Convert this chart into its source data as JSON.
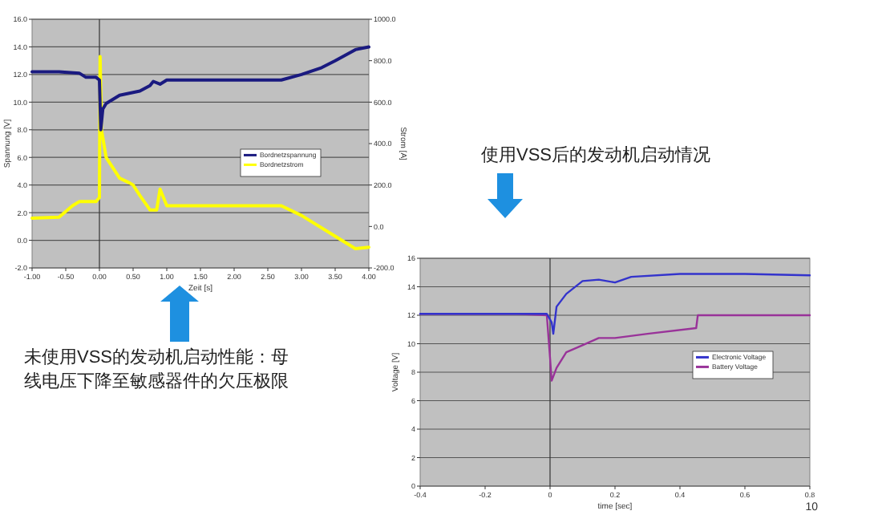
{
  "chart_data": [
    {
      "type": "line",
      "title": "未使用VSS的发动机启动性能：母线电压下降至敏感器件的欠压极限",
      "xlabel": "Zeit [s]",
      "ylabel": "Spannung [V]",
      "y2label": "Strom [A]",
      "grid": "y",
      "legend": "right",
      "line_style": "solid",
      "marker": "none",
      "xlim": [
        -1,
        4
      ],
      "xticks": [
        {
          "value": -1,
          "label": "-1.00"
        },
        {
          "value": -0.5,
          "label": "-0.50"
        },
        {
          "value": 0,
          "label": "0.00"
        },
        {
          "value": 0.5,
          "label": "0.50"
        },
        {
          "value": 1,
          "label": "1.00"
        },
        {
          "value": 1.5,
          "label": "1.50"
        },
        {
          "value": 2,
          "label": "2.00"
        },
        {
          "value": 2.5,
          "label": "2.50"
        },
        {
          "value": 3,
          "label": "3.00"
        },
        {
          "value": 3.5,
          "label": "3.50"
        },
        {
          "value": 4,
          "label": "4.00"
        }
      ],
      "ylim": [
        -2,
        16
      ],
      "yticks": [
        {
          "value": -2,
          "label": "-2.0"
        },
        {
          "value": 0,
          "label": "0.0"
        },
        {
          "value": 2,
          "label": "2.0"
        },
        {
          "value": 4,
          "label": "4.0"
        },
        {
          "value": 6,
          "label": "6.0"
        },
        {
          "value": 8,
          "label": "8.0"
        },
        {
          "value": 10,
          "label": "10.0"
        },
        {
          "value": 12,
          "label": "12.0"
        },
        {
          "value": 14,
          "label": "14.0"
        },
        {
          "value": 16,
          "label": "16.0"
        }
      ],
      "y2lim": [
        -200,
        1000
      ],
      "y2ticks": [
        {
          "value": -200,
          "label": "-200.0"
        },
        {
          "value": 0,
          "label": "0.0"
        },
        {
          "value": 200,
          "label": "200.0"
        },
        {
          "value": 400,
          "label": "400.0"
        },
        {
          "value": 600,
          "label": "600.0"
        },
        {
          "value": 800,
          "label": "800.0"
        },
        {
          "value": 1000,
          "label": "1000.0"
        }
      ],
      "series": [
        {
          "name": "Bordnetzspannung",
          "color": "#1a1a80",
          "x": [
            -1,
            -0.6,
            -0.3,
            -0.2,
            -0.05,
            0,
            0.02,
            0.05,
            0.1,
            0.3,
            0.6,
            0.75,
            0.8,
            0.9,
            1.0,
            1.5,
            2.0,
            2.7,
            3.0,
            3.3,
            3.5,
            3.8,
            4.0
          ],
          "values": [
            12.2,
            12.2,
            12.1,
            11.8,
            11.8,
            11.6,
            8,
            9.5,
            9.9,
            10.5,
            10.8,
            11.2,
            11.5,
            11.3,
            11.6,
            11.6,
            11.6,
            11.6,
            12,
            12.5,
            13,
            13.8,
            14
          ]
        },
        {
          "name": "Bordnetzstrom",
          "color": "#ffff00",
          "axis": "y2",
          "x": [
            -1,
            -0.6,
            -0.4,
            -0.3,
            -0.05,
            0,
            0.01,
            0.03,
            0.1,
            0.3,
            0.45,
            0.5,
            0.6,
            0.75,
            0.85,
            0.9,
            1.0,
            1.5,
            2.0,
            2.7,
            3.0,
            3.5,
            3.8,
            4.0
          ],
          "values": [
            40,
            45,
            100,
            120,
            120,
            140,
            820,
            467,
            333,
            233,
            210,
            200,
            150,
            80,
            80,
            180,
            100,
            100,
            100,
            100,
            53,
            -47,
            -107,
            -100
          ]
        }
      ]
    },
    {
      "type": "line",
      "title": "使用VSS后的发动机启动情况",
      "xlabel": "time [sec]",
      "ylabel": "Voltage [V]",
      "grid": "y",
      "legend": "right",
      "line_style": "solid",
      "marker": "none",
      "annotations": [
        "10"
      ],
      "xlim": [
        -0.4,
        0.8
      ],
      "xticks": [
        -0.4,
        -0.2,
        0,
        0.2,
        0.4,
        0.6,
        0.8
      ],
      "ylim": [
        0,
        16
      ],
      "yticks": [
        0,
        2,
        4,
        6,
        8,
        10,
        12,
        14,
        16
      ],
      "series": [
        {
          "name": "Electronic Voltage",
          "color": "#3333cc",
          "x": [
            -0.4,
            -0.1,
            -0.01,
            0.005,
            0.01,
            0.02,
            0.05,
            0.1,
            0.15,
            0.2,
            0.25,
            0.4,
            0.6,
            0.8
          ],
          "values": [
            12.1,
            12.1,
            12.1,
            11.5,
            10.7,
            12.6,
            13.5,
            14.4,
            14.5,
            14.3,
            14.7,
            14.9,
            14.9,
            14.8
          ]
        },
        {
          "name": "Battery Voltage",
          "color": "#993399",
          "x": [
            -0.4,
            -0.1,
            -0.01,
            0.0,
            0.005,
            0.02,
            0.05,
            0.1,
            0.15,
            0.2,
            0.3,
            0.45,
            0.455,
            0.6,
            0.8
          ],
          "values": [
            12.1,
            12.1,
            12.0,
            9,
            7.4,
            8.3,
            9.4,
            9.9,
            10.4,
            10.4,
            10.7,
            11.1,
            12.0,
            12.0,
            12.0
          ]
        }
      ]
    }
  ]
}
